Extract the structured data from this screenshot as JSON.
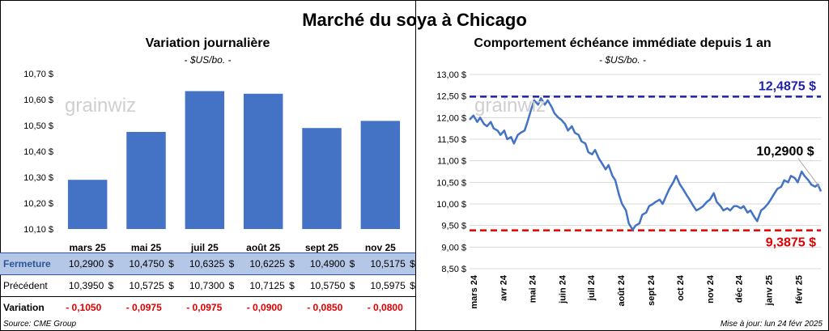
{
  "page": {
    "title": "Marché du soya à Chicago",
    "source": "Source: CME Group",
    "updated": "Mise à jour: lun 24 févr 2025"
  },
  "left": {
    "title": "Variation journalière",
    "unit": "- $US/bo. -",
    "watermark": "grainwiz",
    "row_labels": {
      "fermeture": "Fermeture",
      "precedent": "Précédent",
      "variation": "Variation"
    },
    "table": [
      {
        "month": "mars 25",
        "fermeture": "10,2900",
        "precedent": "10,3950",
        "variation": "- 0,1050"
      },
      {
        "month": "mai 25",
        "fermeture": "10,4750",
        "precedent": "10,5725",
        "variation": "- 0,0975"
      },
      {
        "month": "juil 25",
        "fermeture": "10,6325",
        "precedent": "10,7300",
        "variation": "- 0,0975"
      },
      {
        "month": "août 25",
        "fermeture": "10,6225",
        "precedent": "10,7125",
        "variation": "- 0,0900"
      },
      {
        "month": "sept 25",
        "fermeture": "10,4900",
        "precedent": "10,5750",
        "variation": "- 0,0850"
      },
      {
        "month": "nov 25",
        "fermeture": "10,5175",
        "precedent": "10,5975",
        "variation": "- 0,0800"
      }
    ]
  },
  "right": {
    "title": "Comportement échéance immédiate depuis 1 an",
    "unit": "- $US/bo. -",
    "watermark": "grainwiz",
    "high_label": "12,4875 $",
    "low_label": "9,3875 $",
    "last_label": "10,2900 $"
  },
  "chart_data": [
    {
      "type": "bar",
      "title": "Variation journalière",
      "ylabel": "$US/bo.",
      "categories": [
        "mars 25",
        "mai 25",
        "juil 25",
        "août 25",
        "sept 25",
        "nov 25"
      ],
      "values": [
        10.29,
        10.475,
        10.6325,
        10.6225,
        10.49,
        10.5175
      ],
      "ylim": [
        10.1,
        10.7
      ],
      "yticks": [
        "10,10 $",
        "10,20 $",
        "10,30 $",
        "10,40 $",
        "10,50 $",
        "10,60 $",
        "10,70 $"
      ],
      "color": "#4472c4",
      "grid": false
    },
    {
      "type": "line",
      "title": "Comportement échéance immédiate depuis 1 an",
      "ylabel": "$US/bo.",
      "ylim": [
        8.5,
        13.0
      ],
      "yticks": [
        "8,50 $",
        "9,00 $",
        "9,50 $",
        "10,00 $",
        "10,50 $",
        "11,00 $",
        "11,50 $",
        "12,00 $",
        "12,50 $",
        "13,00 $"
      ],
      "xticks": [
        "mars 24",
        "avr 24",
        "mai 24",
        "juin 24",
        "juil 24",
        "août 24",
        "sept 24",
        "oct 24",
        "nov 24",
        "déc 24",
        "janv 25",
        "févr 25"
      ],
      "x_range": [
        "2024-02-26",
        "2025-02-24"
      ],
      "color": "#4472c4",
      "reference_lines": [
        {
          "label": "12,4875 $",
          "value": 12.4875,
          "color": "#1f1fa8",
          "style": "dashed"
        },
        {
          "label": "9,3875 $",
          "value": 9.3875,
          "color": "#e00000",
          "style": "dashed"
        }
      ],
      "last_value_label": "10,2900 $",
      "series": [
        {
          "x": [
            "2024-02-26",
            "2024-03-01",
            "2024-03-05",
            "2024-03-08",
            "2024-03-12",
            "2024-03-15",
            "2024-03-19",
            "2024-03-22",
            "2024-03-26",
            "2024-03-29",
            "2024-04-02",
            "2024-04-05",
            "2024-04-09",
            "2024-04-12",
            "2024-04-16",
            "2024-04-19",
            "2024-04-23",
            "2024-04-26",
            "2024-04-30",
            "2024-05-03",
            "2024-05-07",
            "2024-05-10",
            "2024-05-14",
            "2024-05-17",
            "2024-05-21",
            "2024-05-24",
            "2024-05-28",
            "2024-05-31",
            "2024-06-04",
            "2024-06-07",
            "2024-06-11",
            "2024-06-14",
            "2024-06-18",
            "2024-06-21",
            "2024-06-25",
            "2024-06-28",
            "2024-07-02",
            "2024-07-05",
            "2024-07-09",
            "2024-07-12",
            "2024-07-16",
            "2024-07-19",
            "2024-07-23",
            "2024-07-26",
            "2024-07-30",
            "2024-08-02",
            "2024-08-06",
            "2024-08-09",
            "2024-08-13",
            "2024-08-16",
            "2024-08-20",
            "2024-08-23",
            "2024-08-27",
            "2024-08-30",
            "2024-09-03",
            "2024-09-06",
            "2024-09-10",
            "2024-09-13",
            "2024-09-17",
            "2024-09-20",
            "2024-09-24",
            "2024-09-27",
            "2024-10-01",
            "2024-10-04",
            "2024-10-08",
            "2024-10-11",
            "2024-10-15",
            "2024-10-18",
            "2024-10-22",
            "2024-10-25",
            "2024-10-29",
            "2024-11-01",
            "2024-11-05",
            "2024-11-08",
            "2024-11-12",
            "2024-11-15",
            "2024-11-19",
            "2024-11-22",
            "2024-11-26",
            "2024-11-29",
            "2024-12-03",
            "2024-12-06",
            "2024-12-10",
            "2024-12-13",
            "2024-12-17",
            "2024-12-20",
            "2024-12-24",
            "2024-12-27",
            "2024-12-31",
            "2025-01-03",
            "2025-01-07",
            "2025-01-10",
            "2025-01-14",
            "2025-01-17",
            "2025-01-21",
            "2025-01-24",
            "2025-01-28",
            "2025-01-31",
            "2025-02-04",
            "2025-02-07",
            "2025-02-11",
            "2025-02-14",
            "2025-02-18",
            "2025-02-21",
            "2025-02-24"
          ],
          "y": [
            11.95,
            12.05,
            11.9,
            12.0,
            11.85,
            11.8,
            11.9,
            11.75,
            11.7,
            11.6,
            11.7,
            11.5,
            11.55,
            11.4,
            11.6,
            11.65,
            11.7,
            11.9,
            12.2,
            12.4,
            12.3,
            12.45,
            12.3,
            12.4,
            12.25,
            12.1,
            12.0,
            11.95,
            11.85,
            11.7,
            11.8,
            11.65,
            11.6,
            11.45,
            11.4,
            11.2,
            11.15,
            11.25,
            11.05,
            10.95,
            10.8,
            10.9,
            10.65,
            10.55,
            10.2,
            10.0,
            9.85,
            9.55,
            9.4,
            9.5,
            9.55,
            9.75,
            9.8,
            9.95,
            10.0,
            10.05,
            10.1,
            10.0,
            10.2,
            10.35,
            10.5,
            10.65,
            10.45,
            10.35,
            10.2,
            10.1,
            9.95,
            9.85,
            9.9,
            9.95,
            10.05,
            10.1,
            10.25,
            10.05,
            9.95,
            9.85,
            9.9,
            9.85,
            9.95,
            9.95,
            9.9,
            9.95,
            9.8,
            9.85,
            9.7,
            9.6,
            9.85,
            9.9,
            10.0,
            10.1,
            10.25,
            10.35,
            10.4,
            10.55,
            10.5,
            10.65,
            10.6,
            10.5,
            10.75,
            10.65,
            10.55,
            10.45,
            10.4,
            10.45,
            10.29
          ]
        }
      ]
    }
  ]
}
